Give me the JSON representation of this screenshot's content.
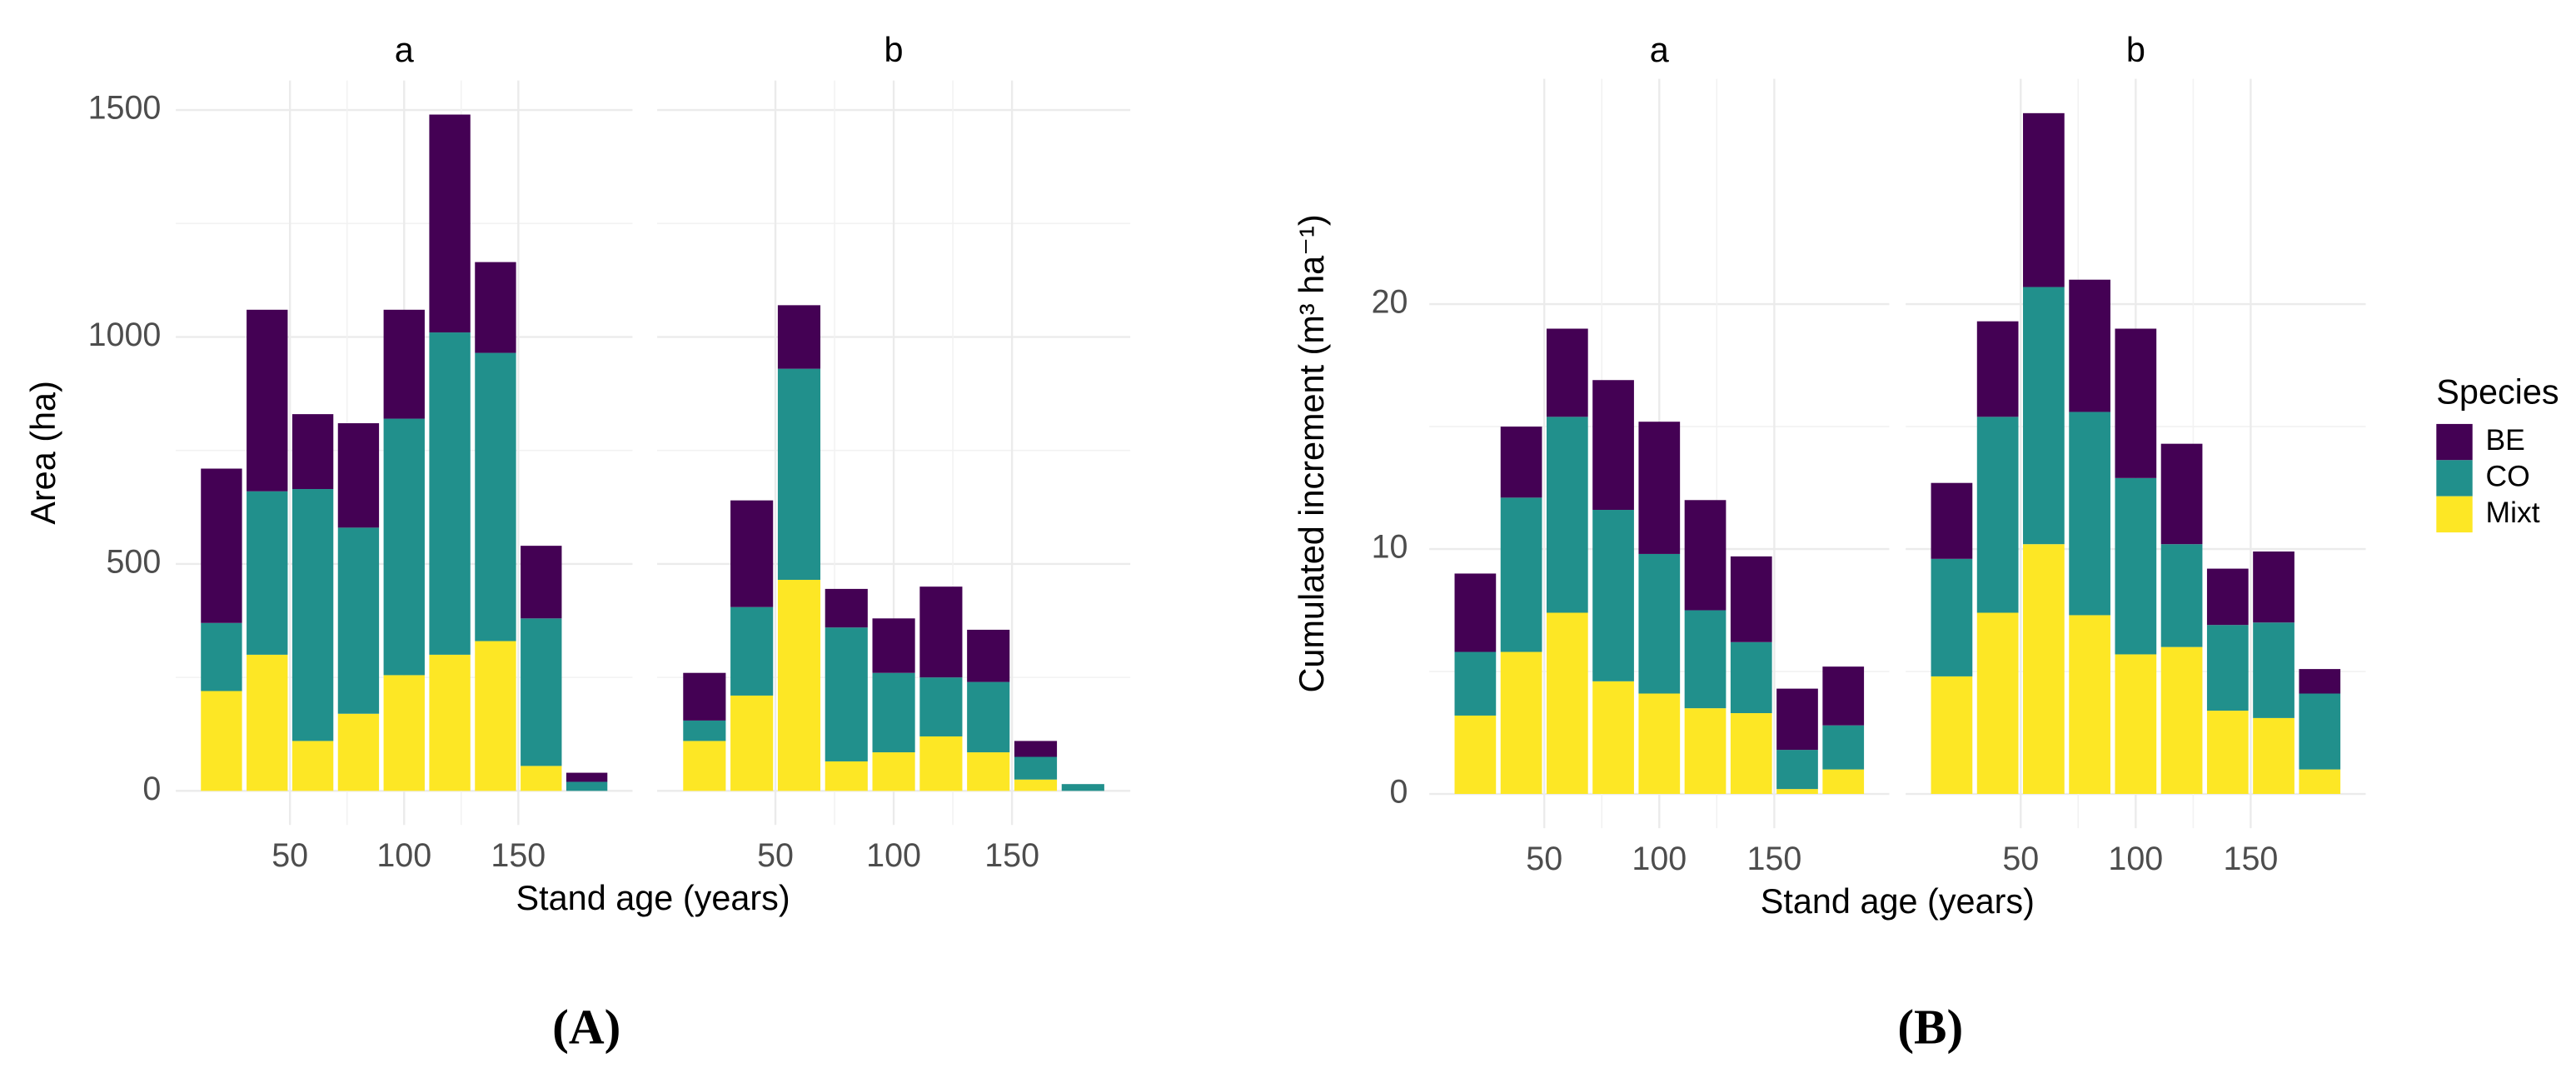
{
  "chart_data": [
    {
      "type": "bar",
      "stacked": true,
      "panel_label": "(A)",
      "xlabel": "Stand age (years)",
      "ylabel": "Area (ha)",
      "xlim": [
        0,
        200
      ],
      "xticks": [
        50,
        100,
        150
      ],
      "ylim": [
        -75,
        1565
      ],
      "yticks": [
        0,
        500,
        1000,
        1500
      ],
      "grid": true,
      "series": [
        {
          "color": "#440154"
        },
        {
          "color": "#21908C"
        },
        {
          "color": "#FDE725"
        }
      ],
      "facets": [
        {
          "title": "a",
          "x": [
            20,
            40,
            60,
            80,
            100,
            120,
            140,
            160,
            180
          ],
          "values": [
            [
              340,
              400,
              165,
              230,
              240,
              480,
              200,
              160,
              20
            ],
            [
              150,
              360,
              555,
              410,
              565,
              710,
              635,
              325,
              20
            ],
            [
              220,
              300,
              110,
              170,
              255,
              300,
              330,
              55,
              0
            ]
          ]
        },
        {
          "title": "b",
          "x": [
            20,
            40,
            60,
            80,
            100,
            120,
            140,
            160,
            180
          ],
          "values": [
            [
              105,
              235,
              140,
              85,
              120,
              200,
              115,
              35,
              0
            ],
            [
              45,
              195,
              465,
              295,
              175,
              130,
              155,
              50,
              15
            ],
            [
              110,
              210,
              465,
              65,
              85,
              120,
              85,
              25,
              0
            ]
          ]
        }
      ]
    },
    {
      "type": "bar",
      "stacked": true,
      "panel_label": "(B)",
      "xlabel": "Stand age (years)",
      "ylabel": "Cumulated increment (m³ ha⁻¹)",
      "xlim": [
        0,
        200
      ],
      "xticks": [
        50,
        100,
        150
      ],
      "ylim": [
        -1.4,
        29.2
      ],
      "yticks": [
        0,
        10,
        20
      ],
      "grid": true,
      "legend": "right",
      "legend_title": "Species",
      "series": [
        {
          "name": "BE",
          "color": "#440154"
        },
        {
          "name": "CO",
          "color": "#21908C"
        },
        {
          "name": "Mixt",
          "color": "#FDE725"
        }
      ],
      "facets": [
        {
          "title": "a",
          "x": [
            20,
            40,
            60,
            80,
            100,
            120,
            140,
            160,
            180
          ],
          "values": [
            [
              3.2,
              2.9,
              3.6,
              5.3,
              5.4,
              4.5,
              3.5,
              2.5,
              2.4
            ],
            [
              2.6,
              6.3,
              8.0,
              7.0,
              5.7,
              4.0,
              2.9,
              1.6,
              1.8
            ],
            [
              3.2,
              5.8,
              7.4,
              4.6,
              4.1,
              3.5,
              3.3,
              0.2,
              1.0
            ]
          ]
        },
        {
          "title": "b",
          "x": [
            20,
            40,
            60,
            80,
            100,
            120,
            140,
            160,
            180
          ],
          "values": [
            [
              3.1,
              3.9,
              7.1,
              5.4,
              6.1,
              4.1,
              2.3,
              2.9,
              1.0
            ],
            [
              4.8,
              8.0,
              10.5,
              8.3,
              7.2,
              4.2,
              3.5,
              3.9,
              3.1
            ],
            [
              4.8,
              7.4,
              10.2,
              7.3,
              5.7,
              6.0,
              3.4,
              3.1,
              1.0
            ]
          ]
        }
      ]
    }
  ]
}
